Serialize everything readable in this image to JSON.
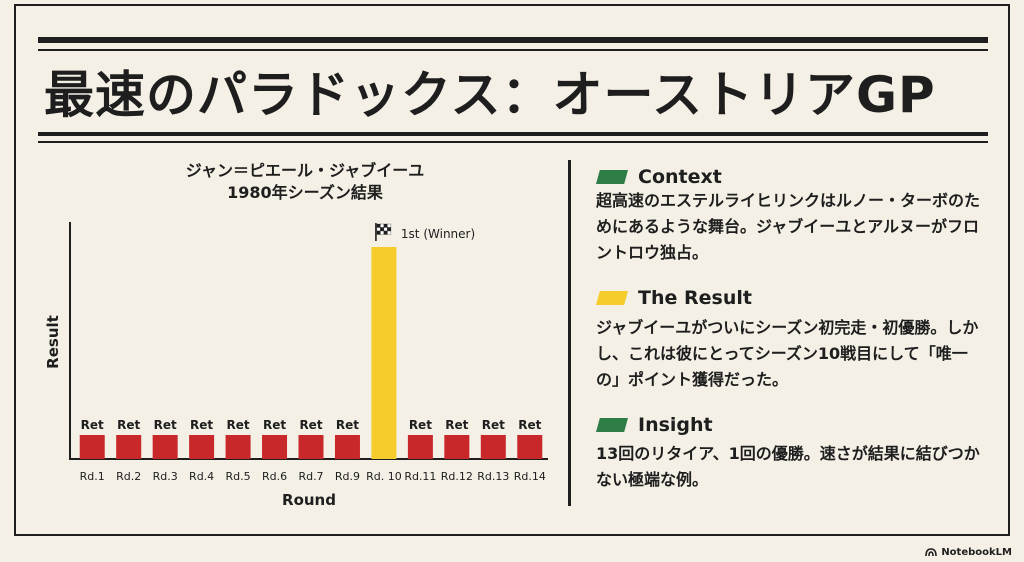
{
  "title": "最速のパラドックス：オーストリアGP",
  "chart_data": {
    "type": "bar",
    "title": "ジャン＝ピエール・ジャブイーユ\n1980年シーズン結果",
    "xlabel": "Round",
    "ylabel": "Result",
    "categories": [
      "Rd.1",
      "Rd.2",
      "Rd.3",
      "Rd.4",
      "Rd.5",
      "Rd.6",
      "Rd.7",
      "Rd.9",
      "Rd. 10",
      "Rd.11",
      "Rd.12",
      "Rd.13",
      "Rd.14"
    ],
    "labels": [
      "Ret",
      "Ret",
      "Ret",
      "Ret",
      "Ret",
      "Ret",
      "Ret",
      "Ret",
      "1st (Winner)",
      "Ret",
      "Ret",
      "Ret",
      "Ret"
    ],
    "highlight_index": 8,
    "colors": {
      "retired": "#c8282a",
      "winner": "#f5cc2b"
    }
  },
  "sections": [
    {
      "heading": "Context",
      "color": "#2e7d46",
      "body": "超高速のエステルライヒリンクはルノー・ターボのためにあるような舞台。ジャブイーユとアルヌーがフロントロウ独占。"
    },
    {
      "heading": "The Result",
      "color": "#f5cc2b",
      "body": "ジャブイーユがついにシーズン初完走・初優勝。しかし、これは彼にとってシーズン10戦目にして「唯一の」ポイント獲得だった。"
    },
    {
      "heading": "Insight",
      "color": "#2e7d46",
      "body": "13回のリタイア、1回の優勝。速さが結果に結びつかない極端な例。"
    }
  ],
  "badge": "NotebookLM",
  "icons": {
    "winner_marker": "checkered-flag-icon",
    "badge_logo": "notebooklm-logo-icon"
  }
}
